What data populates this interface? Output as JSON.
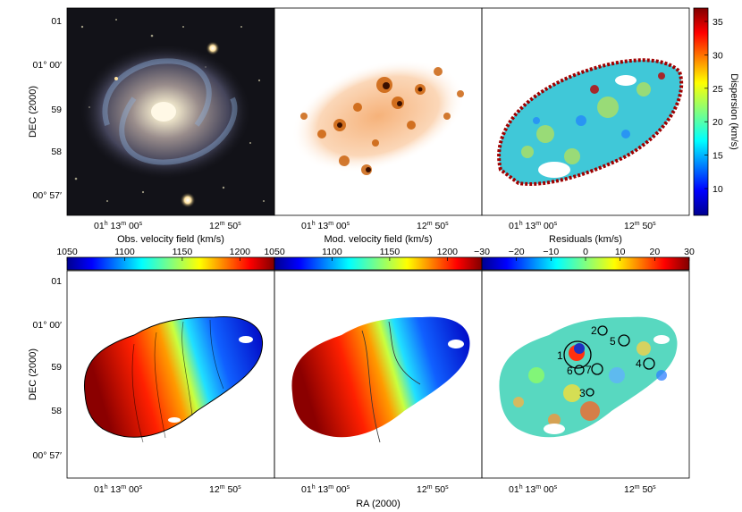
{
  "axes": {
    "ylabel": "DEC (2000)",
    "xlabel": "RA (2000)",
    "dec_ticks": [
      "01",
      "01° 00′",
      "59",
      "58",
      "00° 57′"
    ],
    "ra_ticks": [
      {
        "h": "01",
        "h_unit": "h",
        "m": "13",
        "m_unit": "m",
        "s": "00",
        "s_unit": "s"
      },
      {
        "m": "12",
        "m_unit": "m",
        "s": "50",
        "s_unit": "s"
      }
    ]
  },
  "colorbars": {
    "dispersion": {
      "label": "Dispersion (km/s)",
      "ticks": [
        "35",
        "30",
        "25",
        "20",
        "15",
        "10"
      ],
      "range": [
        6,
        37
      ],
      "colormap": "jet"
    },
    "obs_velocity": {
      "label": "Obs. velocity field (km/s)",
      "ticks": [
        "1050",
        "1100",
        "1150",
        "1200"
      ],
      "range": [
        1050,
        1230
      ],
      "colormap": "jet"
    },
    "mod_velocity": {
      "label": "Mod. velocity field (km/s)",
      "ticks": [
        "1050",
        "1100",
        "1150",
        "1200"
      ],
      "range": [
        1050,
        1230
      ],
      "colormap": "jet"
    },
    "residuals": {
      "label": "Residuals (km/s)",
      "ticks": [
        "−30",
        "−20",
        "−10",
        "0",
        "10",
        "20",
        "30"
      ],
      "range": [
        -30,
        30
      ],
      "colormap": "jet"
    }
  },
  "panels": [
    {
      "id": "optical",
      "desc": "optical image"
    },
    {
      "id": "halpha",
      "desc": "monochromatic map"
    },
    {
      "id": "dispersion",
      "desc": "velocity dispersion map"
    },
    {
      "id": "obs",
      "desc": "observed velocity field"
    },
    {
      "id": "mod",
      "desc": "model velocity field"
    },
    {
      "id": "res",
      "desc": "residual velocity field"
    }
  ],
  "regions": [
    {
      "label": "1"
    },
    {
      "label": "2"
    },
    {
      "label": "3"
    },
    {
      "label": "4"
    },
    {
      "label": "5"
    },
    {
      "label": "6"
    },
    {
      "label": "7"
    }
  ],
  "colors": {
    "jet_blue": "#00008f",
    "jet_red": "#800000",
    "halpha": "#c85a00"
  }
}
